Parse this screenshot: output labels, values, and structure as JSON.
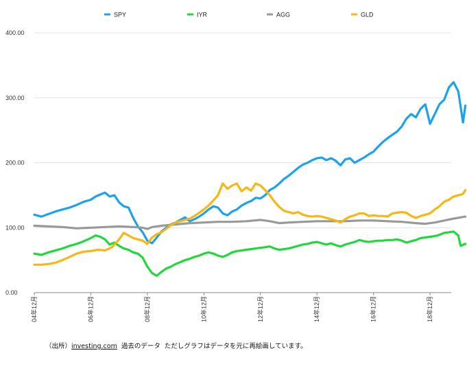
{
  "chart_data": {
    "type": "line",
    "ylim": [
      0,
      400
    ],
    "yticks": [
      "0.00",
      "100.00",
      "200.00",
      "300.00",
      "400.00"
    ],
    "xlim": [
      0,
      177
    ],
    "xticks": [
      {
        "x": 0,
        "label": "04年12月"
      },
      {
        "x": 24,
        "label": "06年12月"
      },
      {
        "x": 48,
        "label": "08年12月"
      },
      {
        "x": 72,
        "label": "10年12月"
      },
      {
        "x": 96,
        "label": "12年12月"
      },
      {
        "x": 120,
        "label": "14年12月"
      },
      {
        "x": 144,
        "label": "16年12月"
      },
      {
        "x": 168,
        "label": "18年12月"
      }
    ],
    "x_unit": "months since 04年12月",
    "grid": true,
    "legend_position": "top",
    "series": [
      {
        "name": "SPY",
        "color": "#1aa3ec",
        "points": [
          [
            0,
            120
          ],
          [
            3,
            117
          ],
          [
            6,
            121
          ],
          [
            9,
            125
          ],
          [
            12,
            128
          ],
          [
            15,
            131
          ],
          [
            18,
            135
          ],
          [
            21,
            140
          ],
          [
            24,
            143
          ],
          [
            26,
            148
          ],
          [
            28,
            151
          ],
          [
            30,
            154
          ],
          [
            32,
            148
          ],
          [
            34,
            150
          ],
          [
            36,
            139
          ],
          [
            38,
            133
          ],
          [
            40,
            131
          ],
          [
            42,
            115
          ],
          [
            44,
            102
          ],
          [
            46,
            93
          ],
          [
            48,
            80
          ],
          [
            50,
            76
          ],
          [
            52,
            85
          ],
          [
            54,
            94
          ],
          [
            56,
            100
          ],
          [
            58,
            105
          ],
          [
            60,
            108
          ],
          [
            62,
            112
          ],
          [
            64,
            116
          ],
          [
            66,
            110
          ],
          [
            68,
            113
          ],
          [
            70,
            117
          ],
          [
            72,
            122
          ],
          [
            74,
            128
          ],
          [
            76,
            133
          ],
          [
            78,
            131
          ],
          [
            80,
            122
          ],
          [
            82,
            119
          ],
          [
            84,
            125
          ],
          [
            86,
            128
          ],
          [
            88,
            134
          ],
          [
            90,
            138
          ],
          [
            92,
            141
          ],
          [
            94,
            146
          ],
          [
            96,
            145
          ],
          [
            98,
            150
          ],
          [
            100,
            158
          ],
          [
            102,
            162
          ],
          [
            104,
            168
          ],
          [
            106,
            175
          ],
          [
            108,
            180
          ],
          [
            110,
            186
          ],
          [
            112,
            192
          ],
          [
            114,
            197
          ],
          [
            116,
            200
          ],
          [
            118,
            204
          ],
          [
            120,
            207
          ],
          [
            122,
            208
          ],
          [
            124,
            204
          ],
          [
            126,
            207
          ],
          [
            128,
            203
          ],
          [
            130,
            196
          ],
          [
            132,
            205
          ],
          [
            134,
            207
          ],
          [
            136,
            200
          ],
          [
            138,
            204
          ],
          [
            140,
            208
          ],
          [
            142,
            213
          ],
          [
            144,
            217
          ],
          [
            146,
            225
          ],
          [
            148,
            232
          ],
          [
            150,
            238
          ],
          [
            152,
            243
          ],
          [
            154,
            248
          ],
          [
            156,
            256
          ],
          [
            158,
            268
          ],
          [
            160,
            275
          ],
          [
            162,
            270
          ],
          [
            164,
            283
          ],
          [
            166,
            290
          ],
          [
            168,
            260
          ],
          [
            170,
            275
          ],
          [
            172,
            290
          ],
          [
            174,
            297
          ],
          [
            176,
            316
          ],
          [
            178,
            324
          ],
          [
            180,
            310
          ],
          [
            182,
            262
          ],
          [
            183,
            288
          ]
        ]
      },
      {
        "name": "IYR",
        "color": "#21d83a",
        "points": [
          [
            0,
            60
          ],
          [
            3,
            58
          ],
          [
            6,
            62
          ],
          [
            9,
            65
          ],
          [
            12,
            68
          ],
          [
            15,
            72
          ],
          [
            18,
            75
          ],
          [
            21,
            79
          ],
          [
            24,
            84
          ],
          [
            26,
            88
          ],
          [
            28,
            86
          ],
          [
            30,
            82
          ],
          [
            32,
            74
          ],
          [
            34,
            77
          ],
          [
            36,
            72
          ],
          [
            38,
            68
          ],
          [
            40,
            66
          ],
          [
            42,
            62
          ],
          [
            44,
            60
          ],
          [
            46,
            54
          ],
          [
            48,
            40
          ],
          [
            50,
            30
          ],
          [
            52,
            26
          ],
          [
            54,
            32
          ],
          [
            56,
            37
          ],
          [
            58,
            40
          ],
          [
            60,
            44
          ],
          [
            62,
            47
          ],
          [
            64,
            50
          ],
          [
            66,
            52
          ],
          [
            68,
            55
          ],
          [
            70,
            57
          ],
          [
            72,
            60
          ],
          [
            74,
            62
          ],
          [
            76,
            60
          ],
          [
            78,
            57
          ],
          [
            80,
            55
          ],
          [
            82,
            58
          ],
          [
            84,
            62
          ],
          [
            86,
            64
          ],
          [
            88,
            65
          ],
          [
            90,
            66
          ],
          [
            92,
            67
          ],
          [
            94,
            68
          ],
          [
            96,
            69
          ],
          [
            98,
            70
          ],
          [
            100,
            71
          ],
          [
            102,
            68
          ],
          [
            104,
            66
          ],
          [
            106,
            67
          ],
          [
            108,
            68
          ],
          [
            110,
            70
          ],
          [
            112,
            72
          ],
          [
            114,
            74
          ],
          [
            116,
            75
          ],
          [
            118,
            77
          ],
          [
            120,
            78
          ],
          [
            122,
            76
          ],
          [
            124,
            74
          ],
          [
            126,
            76
          ],
          [
            128,
            73
          ],
          [
            130,
            71
          ],
          [
            132,
            74
          ],
          [
            134,
            76
          ],
          [
            136,
            78
          ],
          [
            138,
            81
          ],
          [
            140,
            79
          ],
          [
            142,
            78
          ],
          [
            144,
            79
          ],
          [
            146,
            80
          ],
          [
            148,
            80
          ],
          [
            150,
            81
          ],
          [
            152,
            81
          ],
          [
            154,
            82
          ],
          [
            156,
            80
          ],
          [
            158,
            77
          ],
          [
            160,
            79
          ],
          [
            162,
            81
          ],
          [
            164,
            84
          ],
          [
            166,
            85
          ],
          [
            168,
            86
          ],
          [
            170,
            87
          ],
          [
            172,
            89
          ],
          [
            174,
            92
          ],
          [
            176,
            93
          ],
          [
            178,
            94
          ],
          [
            180,
            88
          ],
          [
            181,
            72
          ],
          [
            183,
            75
          ]
        ]
      },
      {
        "name": "AGG",
        "color": "#999999",
        "points": [
          [
            0,
            103
          ],
          [
            6,
            102
          ],
          [
            12,
            101
          ],
          [
            18,
            99
          ],
          [
            24,
            100
          ],
          [
            30,
            101
          ],
          [
            36,
            102
          ],
          [
            42,
            101
          ],
          [
            46,
            100
          ],
          [
            48,
            98
          ],
          [
            50,
            101
          ],
          [
            54,
            103
          ],
          [
            60,
            105
          ],
          [
            66,
            107
          ],
          [
            72,
            108
          ],
          [
            78,
            109
          ],
          [
            84,
            109
          ],
          [
            90,
            110
          ],
          [
            96,
            112
          ],
          [
            100,
            110
          ],
          [
            104,
            107
          ],
          [
            108,
            108
          ],
          [
            114,
            109
          ],
          [
            120,
            110
          ],
          [
            126,
            110
          ],
          [
            132,
            110
          ],
          [
            138,
            111
          ],
          [
            144,
            111
          ],
          [
            150,
            110
          ],
          [
            156,
            109
          ],
          [
            162,
            107
          ],
          [
            166,
            106
          ],
          [
            170,
            108
          ],
          [
            174,
            111
          ],
          [
            178,
            114
          ],
          [
            183,
            117
          ]
        ]
      },
      {
        "name": "GLD",
        "color": "#f7b612",
        "points": [
          [
            0,
            43
          ],
          [
            3,
            43
          ],
          [
            6,
            44
          ],
          [
            9,
            46
          ],
          [
            12,
            50
          ],
          [
            15,
            55
          ],
          [
            18,
            60
          ],
          [
            21,
            63
          ],
          [
            24,
            64
          ],
          [
            27,
            66
          ],
          [
            30,
            65
          ],
          [
            33,
            70
          ],
          [
            36,
            82
          ],
          [
            38,
            92
          ],
          [
            40,
            88
          ],
          [
            42,
            84
          ],
          [
            44,
            82
          ],
          [
            46,
            80
          ],
          [
            48,
            75
          ],
          [
            50,
            85
          ],
          [
            52,
            90
          ],
          [
            54,
            93
          ],
          [
            56,
            98
          ],
          [
            58,
            104
          ],
          [
            60,
            108
          ],
          [
            62,
            110
          ],
          [
            64,
            112
          ],
          [
            66,
            114
          ],
          [
            68,
            118
          ],
          [
            70,
            123
          ],
          [
            72,
            128
          ],
          [
            74,
            134
          ],
          [
            76,
            142
          ],
          [
            78,
            150
          ],
          [
            80,
            168
          ],
          [
            82,
            160
          ],
          [
            84,
            165
          ],
          [
            86,
            168
          ],
          [
            88,
            156
          ],
          [
            90,
            162
          ],
          [
            92,
            157
          ],
          [
            94,
            168
          ],
          [
            96,
            165
          ],
          [
            98,
            158
          ],
          [
            100,
            150
          ],
          [
            102,
            140
          ],
          [
            104,
            132
          ],
          [
            106,
            126
          ],
          [
            108,
            124
          ],
          [
            110,
            122
          ],
          [
            112,
            124
          ],
          [
            114,
            120
          ],
          [
            116,
            118
          ],
          [
            118,
            117
          ],
          [
            120,
            118
          ],
          [
            122,
            117
          ],
          [
            124,
            115
          ],
          [
            126,
            113
          ],
          [
            128,
            111
          ],
          [
            130,
            108
          ],
          [
            132,
            113
          ],
          [
            134,
            117
          ],
          [
            136,
            119
          ],
          [
            138,
            122
          ],
          [
            140,
            122
          ],
          [
            142,
            118
          ],
          [
            144,
            119
          ],
          [
            146,
            118
          ],
          [
            148,
            118
          ],
          [
            150,
            117
          ],
          [
            152,
            122
          ],
          [
            154,
            123
          ],
          [
            156,
            124
          ],
          [
            158,
            123
          ],
          [
            160,
            118
          ],
          [
            162,
            115
          ],
          [
            164,
            118
          ],
          [
            166,
            120
          ],
          [
            168,
            122
          ],
          [
            170,
            128
          ],
          [
            172,
            133
          ],
          [
            174,
            140
          ],
          [
            176,
            143
          ],
          [
            178,
            148
          ],
          [
            180,
            150
          ],
          [
            182,
            152
          ],
          [
            183,
            158
          ]
        ]
      }
    ]
  },
  "legend": [
    "SPY",
    "IYR",
    "AGG",
    "GLD"
  ],
  "source": {
    "prefix": "（出所）",
    "link": "investing.com",
    "suffix": "  過去のデータ  ただしグラフはデータを元に再絵画しています。"
  }
}
